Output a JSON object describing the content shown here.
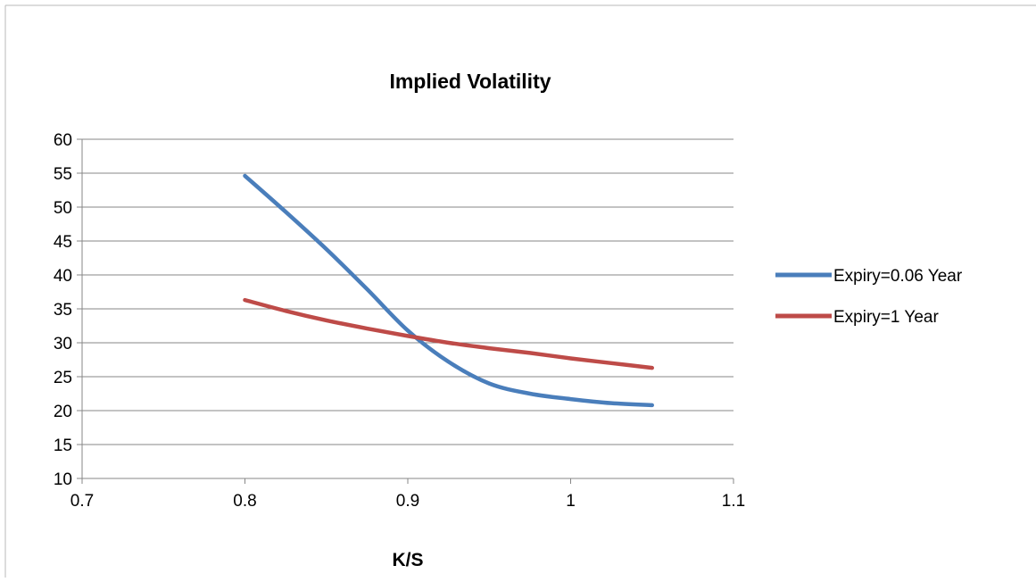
{
  "chart_data": {
    "type": "line",
    "title": "Implied Volatility",
    "xlabel": "K/S",
    "ylabel": "",
    "xlim": [
      0.7,
      1.1
    ],
    "ylim": [
      10,
      60
    ],
    "xticks": [
      "0.7",
      "0.8",
      "0.9",
      "1",
      "1.1"
    ],
    "yticks": [
      "10",
      "15",
      "20",
      "25",
      "30",
      "35",
      "40",
      "45",
      "50",
      "55",
      "60"
    ],
    "grid": "horizontal",
    "legend_position": "right",
    "series": [
      {
        "name": "Expiry=0.06 Year",
        "color": "#4a7ebb",
        "x": [
          0.8,
          0.825,
          0.85,
          0.875,
          0.9,
          0.925,
          0.95,
          0.975,
          1.0,
          1.025,
          1.05
        ],
        "y": [
          54.6,
          49.3,
          43.8,
          37.9,
          31.8,
          27.2,
          24.0,
          22.5,
          21.7,
          21.1,
          20.8
        ]
      },
      {
        "name": "Expiry=1 Year",
        "color": "#be4b48",
        "x": [
          0.8,
          0.825,
          0.85,
          0.875,
          0.9,
          0.925,
          0.95,
          0.975,
          1.0,
          1.025,
          1.05
        ],
        "y": [
          36.3,
          34.7,
          33.3,
          32.1,
          31.0,
          30.0,
          29.2,
          28.5,
          27.7,
          27.0,
          26.3
        ]
      }
    ]
  }
}
